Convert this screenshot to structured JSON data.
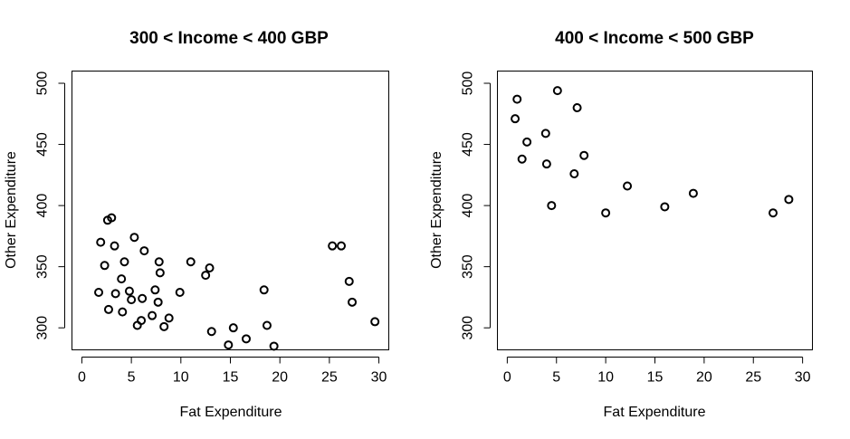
{
  "chart_data": [
    {
      "type": "scatter",
      "title": "300 < Income < 400 GBP",
      "xlabel": "Fat Expenditure",
      "ylabel": "Other Expenditure",
      "xlim": [
        -1,
        31
      ],
      "ylim": [
        282,
        510
      ],
      "xticks": [
        0,
        5,
        10,
        15,
        20,
        25,
        30
      ],
      "yticks": [
        300,
        350,
        400,
        450,
        500
      ],
      "grid": false,
      "series": [
        {
          "points": [
            [
              1.7,
              329
            ],
            [
              1.9,
              370
            ],
            [
              2.3,
              351
            ],
            [
              2.6,
              388
            ],
            [
              3.0,
              390
            ],
            [
              2.7,
              315
            ],
            [
              3.3,
              367
            ],
            [
              3.4,
              328
            ],
            [
              4.0,
              340
            ],
            [
              4.1,
              313
            ],
            [
              4.3,
              354
            ],
            [
              4.8,
              330
            ],
            [
              5.0,
              323
            ],
            [
              5.3,
              374
            ],
            [
              5.6,
              302
            ],
            [
              6.0,
              306
            ],
            [
              6.1,
              324
            ],
            [
              6.3,
              363
            ],
            [
              7.1,
              310
            ],
            [
              7.4,
              331
            ],
            [
              7.7,
              321
            ],
            [
              7.8,
              354
            ],
            [
              7.9,
              345
            ],
            [
              8.3,
              301
            ],
            [
              8.8,
              308
            ],
            [
              9.9,
              329
            ],
            [
              11.0,
              354
            ],
            [
              12.5,
              343
            ],
            [
              12.9,
              349
            ],
            [
              13.1,
              297
            ],
            [
              14.8,
              286
            ],
            [
              15.3,
              300
            ],
            [
              16.6,
              291
            ],
            [
              18.4,
              331
            ],
            [
              18.7,
              302
            ],
            [
              19.4,
              285
            ],
            [
              25.3,
              367
            ],
            [
              26.2,
              367
            ],
            [
              27.0,
              338
            ],
            [
              27.3,
              321
            ],
            [
              29.6,
              305
            ]
          ]
        }
      ]
    },
    {
      "type": "scatter",
      "title": "400 < Income < 500 GBP",
      "xlabel": "Fat Expenditure",
      "ylabel": "Other Expenditure",
      "xlim": [
        -1,
        31
      ],
      "ylim": [
        282,
        510
      ],
      "xticks": [
        0,
        5,
        10,
        15,
        20,
        25,
        30
      ],
      "yticks": [
        300,
        350,
        400,
        450,
        500
      ],
      "grid": false,
      "series": [
        {
          "points": [
            [
              0.8,
              471
            ],
            [
              1.0,
              487
            ],
            [
              1.5,
              438
            ],
            [
              2.0,
              452
            ],
            [
              3.9,
              459
            ],
            [
              4.0,
              434
            ],
            [
              4.5,
              400
            ],
            [
              5.1,
              494
            ],
            [
              6.8,
              426
            ],
            [
              7.1,
              480
            ],
            [
              7.8,
              441
            ],
            [
              10.0,
              394
            ],
            [
              12.2,
              416
            ],
            [
              16.0,
              399
            ],
            [
              18.9,
              410
            ],
            [
              27.0,
              394
            ],
            [
              28.6,
              405
            ]
          ]
        }
      ]
    }
  ]
}
